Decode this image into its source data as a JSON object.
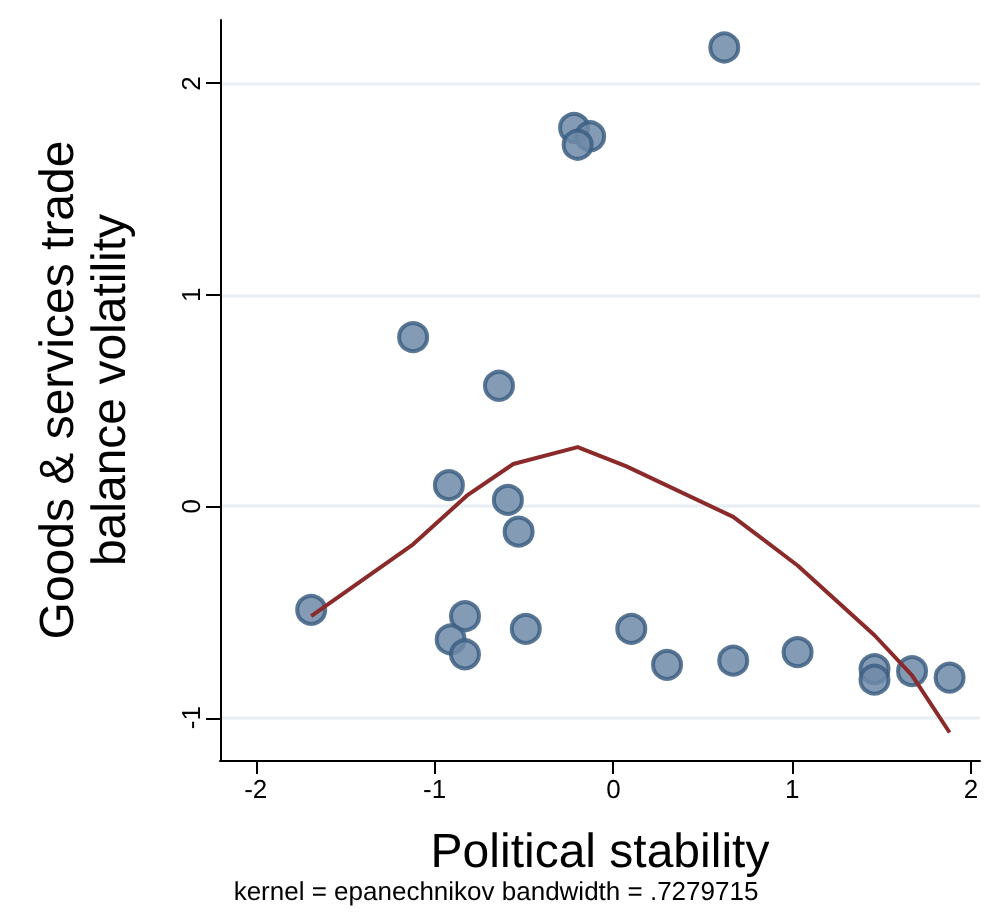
{
  "chart_data": {
    "type": "scatter",
    "xlabel": "Political stability",
    "ylabel": "Goods & services trade\nbalance volatility",
    "annotations": [
      "kernel = epanechnikov bandwidth = .7279715"
    ],
    "xlim": [
      -2.2,
      2.05
    ],
    "ylim": [
      -1.2,
      2.3
    ],
    "xticks": [
      -2,
      -1,
      0,
      1,
      2
    ],
    "yticks": [
      -1,
      0,
      1,
      2
    ],
    "grid": "y",
    "marker": "circle",
    "series": [
      {
        "color": "#6e8aa8",
        "x": [
          -1.69,
          -1.12,
          -0.64,
          -0.92,
          -0.59,
          -0.53,
          -0.83,
          -0.91,
          -0.83,
          -0.49,
          -0.22,
          -0.13,
          -0.2,
          0.62,
          0.1,
          0.3,
          0.67,
          1.03,
          1.46,
          1.46,
          1.67,
          1.88
        ],
        "values": [
          -0.49,
          0.8,
          0.57,
          0.1,
          0.03,
          -0.12,
          -0.52,
          -0.63,
          -0.7,
          -0.58,
          1.79,
          1.75,
          1.71,
          2.17,
          -0.58,
          -0.75,
          -0.73,
          -0.69,
          -0.77,
          -0.82,
          -0.78,
          -0.81
        ]
      },
      {
        "type": "line",
        "color": "#8b2a2a",
        "marker": "none",
        "line_style": "solid",
        "x": [
          -1.69,
          -1.12,
          -0.82,
          -0.56,
          -0.2,
          0.07,
          0.67,
          1.03,
          1.46,
          1.67,
          1.88
        ],
        "values": [
          -0.52,
          -0.18,
          0.05,
          0.2,
          0.28,
          0.19,
          -0.05,
          -0.28,
          -0.61,
          -0.8,
          -1.07
        ]
      }
    ]
  }
}
